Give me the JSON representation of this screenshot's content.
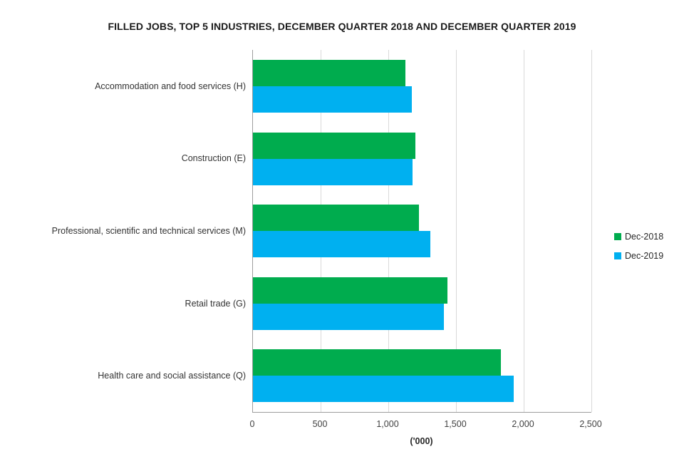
{
  "chart_data": {
    "type": "bar",
    "orientation": "horizontal",
    "title": "FILLED JOBS, TOP 5 INDUSTRIES, DECEMBER QUARTER 2018 AND DECEMBER QUARTER 2019",
    "categories": [
      "Accommodation and food services (H)",
      "Construction (E)",
      "Professional, scientific and technical services (M)",
      "Retail trade (G)",
      "Health care and social assistance (Q)"
    ],
    "series": [
      {
        "name": "Dec-2018",
        "color": "#00ac4e",
        "values": [
          1125,
          1200,
          1225,
          1435,
          1830
        ]
      },
      {
        "name": "Dec-2019",
        "color": "#00b0f0",
        "values": [
          1175,
          1180,
          1310,
          1410,
          1925
        ]
      }
    ],
    "xlabel": "('000)",
    "x_ticks": [
      "0",
      "500",
      "1,000",
      "1,500",
      "2,000",
      "2,500"
    ],
    "x_tick_values": [
      0,
      500,
      1000,
      1500,
      2000,
      2500
    ],
    "xlim": [
      0,
      2500
    ],
    "grid": "vertical",
    "legend_position": "right"
  }
}
